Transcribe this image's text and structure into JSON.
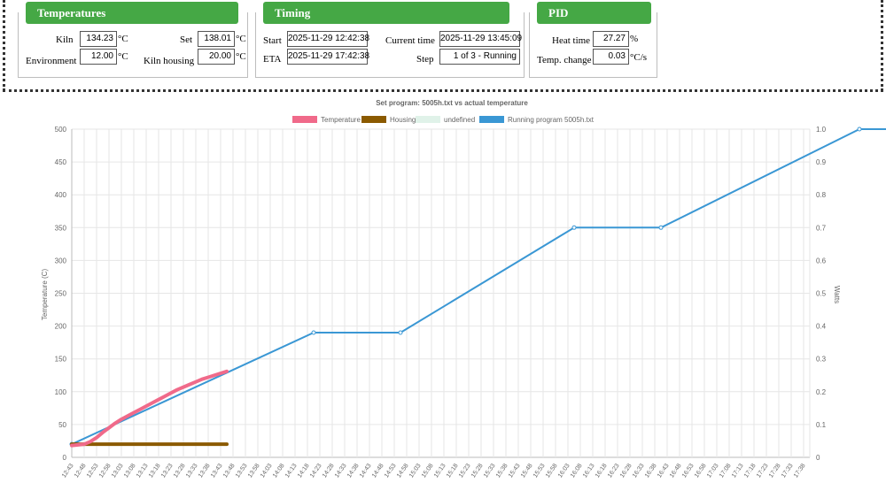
{
  "temperatures": {
    "title": "Temperatures",
    "kiln_label": "Kiln",
    "kiln_value": "134.23",
    "set_label": "Set",
    "set_value": "138.01",
    "environment_label": "Environment",
    "environment_value": "12.00",
    "housing_label": "Kiln housing",
    "housing_value": "20.00",
    "unit": "°C"
  },
  "timing": {
    "title": "Timing",
    "start_label": "Start",
    "start_value": "2025-11-29 12:42:38",
    "current_label": "Current time",
    "current_value": "2025-11-29 13:45:09",
    "eta_label": "ETA",
    "eta_value": "2025-11-29 17:42:38",
    "step_label": "Step",
    "step_value": "1 of 3 - Running"
  },
  "pid": {
    "title": "PID",
    "heat_label": "Heat time",
    "heat_value": "27.27",
    "heat_unit": "%",
    "change_label": "Temp. change",
    "change_value": "0.03",
    "change_unit": "°C/s"
  },
  "chart_data": {
    "type": "line",
    "title": "Set program: 5005h.txt vs actual temperature",
    "ylabel": "Temperature (C)",
    "y2label": "Watts",
    "ylim": [
      0,
      500
    ],
    "y2lim": [
      0,
      1.0
    ],
    "yticks": [
      "0",
      "50",
      "100",
      "150",
      "200",
      "250",
      "300",
      "350",
      "400",
      "450",
      "500"
    ],
    "y2ticks": [
      "0",
      "0.1",
      "0.2",
      "0.3",
      "0.4",
      "0.5",
      "0.6",
      "0.7",
      "0.8",
      "0.9",
      "1.0"
    ],
    "x_labels": [
      "12:43",
      "12:48",
      "12:53",
      "12:58",
      "13:03",
      "13:08",
      "13:13",
      "13:18",
      "13:23",
      "13:28",
      "13:33",
      "13:38",
      "13:43",
      "13:48",
      "13:53",
      "13:58",
      "14:03",
      "14:08",
      "14:13",
      "14:18",
      "14:23",
      "14:28",
      "14:33",
      "14:38",
      "14:43",
      "14:48",
      "14:53",
      "14:58",
      "15:03",
      "15:08",
      "15:13",
      "15:18",
      "15:23",
      "15:28",
      "15:33",
      "15:38",
      "15:43",
      "15:48",
      "15:53",
      "15:58",
      "16:03",
      "16:08",
      "16:13",
      "16:18",
      "16:23",
      "16:28",
      "16:33",
      "16:38",
      "16:43",
      "16:48",
      "16:53",
      "16:58",
      "17:03",
      "17:08",
      "17:13",
      "17:18",
      "17:23",
      "17:28",
      "17:33",
      "17:38"
    ],
    "legend_position": "top",
    "grid": true,
    "series": [
      {
        "name": "Temperature",
        "color": "#f06a8a",
        "axis": "y",
        "x": [
          0,
          0.5,
          1,
          1.5,
          2,
          2.5,
          3,
          3.5,
          4,
          4.5,
          5,
          5.5,
          6,
          6.5,
          7,
          7.5,
          8,
          8.5,
          9,
          9.5,
          10,
          10.5,
          11,
          11.5,
          12,
          12.5
        ],
        "y": [
          18,
          19,
          20,
          24,
          30,
          38,
          45,
          52,
          58,
          63,
          68,
          73,
          78,
          83,
          88,
          93,
          98,
          103,
          107,
          111,
          115,
          119,
          122,
          125,
          128,
          131
        ]
      },
      {
        "name": "Housing",
        "color": "#8b5a00",
        "axis": "y",
        "x": [
          0,
          12.5
        ],
        "y": [
          20,
          20
        ]
      },
      {
        "name": "undefined",
        "color": "#e0f2e9",
        "axis": "y2",
        "x": [],
        "y": []
      },
      {
        "name": "Running program 5005h.txt",
        "color": "#3a97d4",
        "axis": "y",
        "x": [
          0,
          19.5,
          26.5,
          40.5,
          47.5,
          63.5,
          69.5
        ],
        "y": [
          20,
          190,
          190,
          350,
          350,
          500,
          500
        ]
      }
    ]
  }
}
